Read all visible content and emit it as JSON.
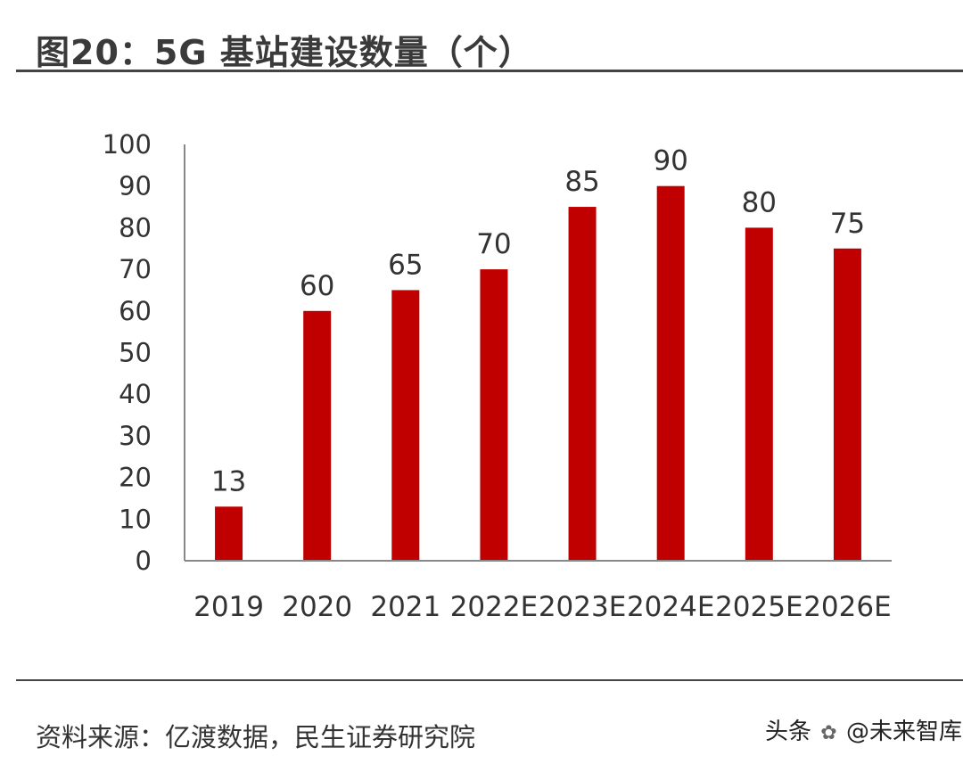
{
  "chart_data": {
    "type": "bar",
    "title": "图20：5G 基站建设数量（个）",
    "categories": [
      "2019",
      "2020",
      "2021",
      "2022E",
      "2023E",
      "2024E",
      "2025E",
      "2026E"
    ],
    "values": [
      13,
      60,
      65,
      70,
      85,
      90,
      80,
      75
    ],
    "ylim": [
      0,
      100
    ],
    "yticks": [
      0,
      10,
      20,
      30,
      40,
      50,
      60,
      70,
      80,
      90,
      100
    ],
    "xlabel": "",
    "ylabel": "",
    "grid": false,
    "legend": "none",
    "bar_color": "#c00000"
  },
  "footer": {
    "source": "资料来源：亿渡数据，民生证券研究院",
    "watermark_prefix": "头条",
    "watermark_name": "@未来智库"
  }
}
